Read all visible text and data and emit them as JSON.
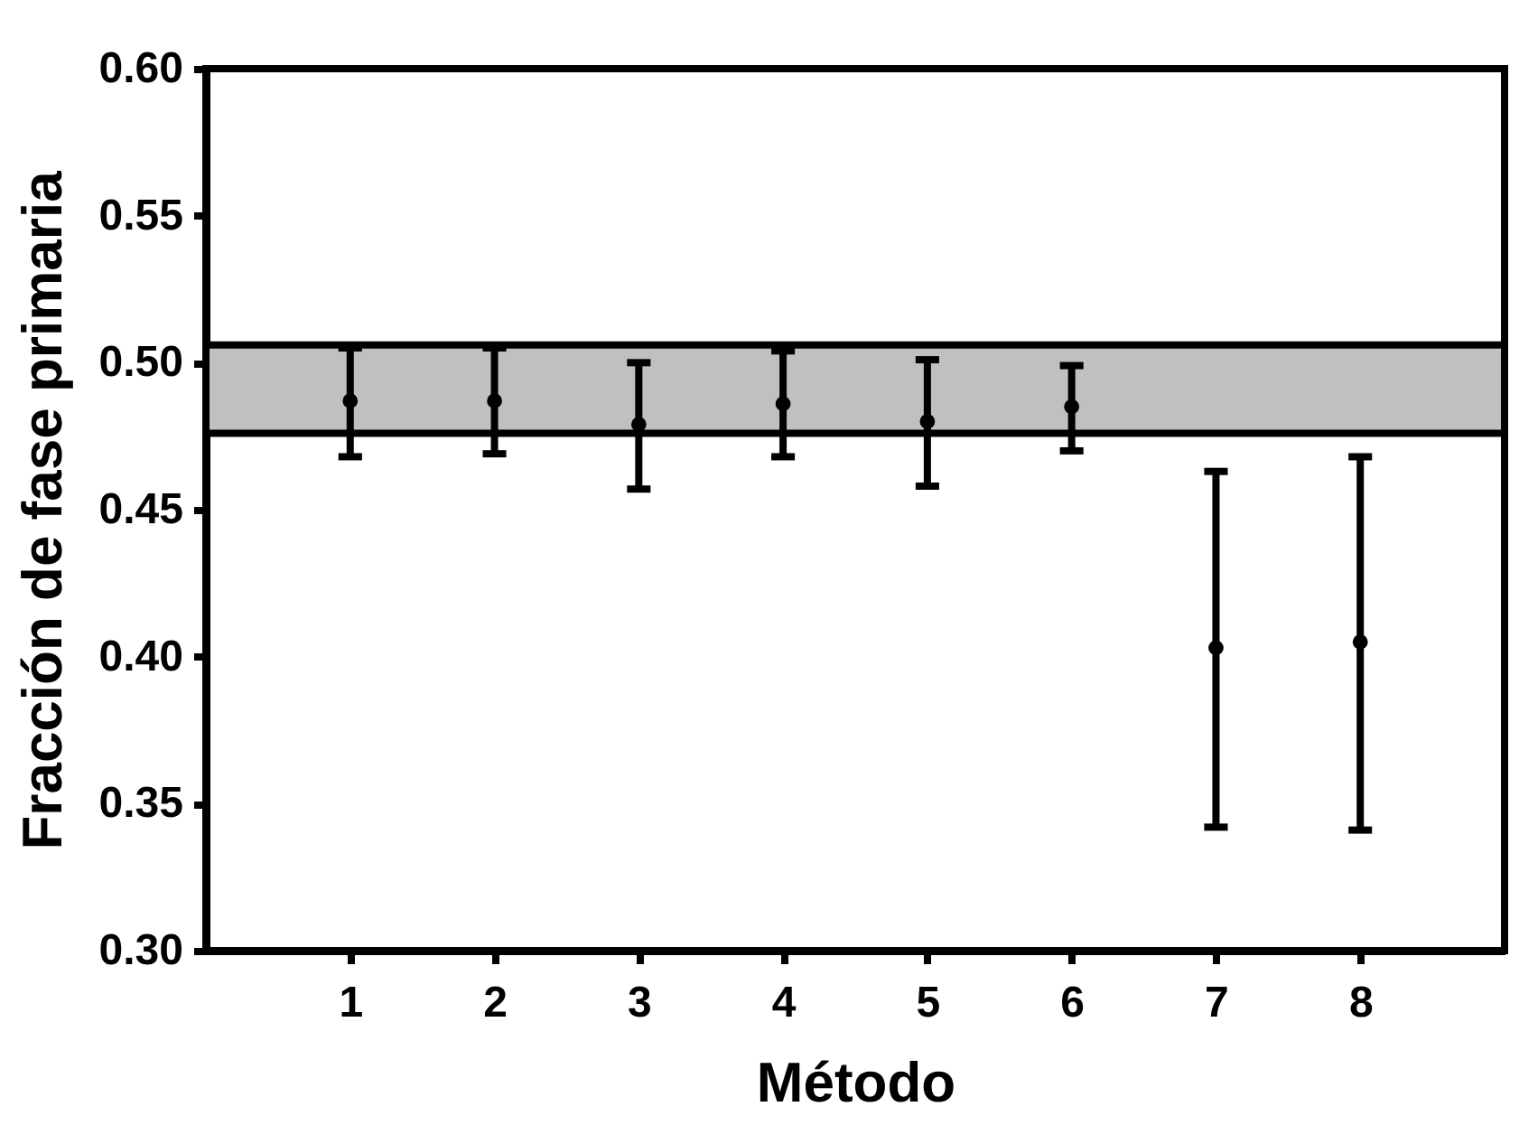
{
  "chart_data": {
    "type": "scatter",
    "xlabel": "Método",
    "ylabel": "Fracción de fase primaria",
    "x": [
      1,
      2,
      3,
      4,
      5,
      6,
      7,
      8
    ],
    "values": [
      0.487,
      0.487,
      0.479,
      0.486,
      0.48,
      0.485,
      0.403,
      0.405
    ],
    "errors": [
      [
        0.468,
        0.505
      ],
      [
        0.469,
        0.505
      ],
      [
        0.457,
        0.5
      ],
      [
        0.468,
        0.504
      ],
      [
        0.458,
        0.501
      ],
      [
        0.47,
        0.499
      ],
      [
        0.342,
        0.463
      ],
      [
        0.341,
        0.468
      ]
    ],
    "color": "#000000",
    "marker": "circle",
    "xlim": [
      0,
      9
    ],
    "xticks": [
      1,
      2,
      3,
      4,
      5,
      6,
      7,
      8
    ],
    "ylim": [
      0.3,
      0.6
    ],
    "yticks": [
      {
        "value": 0.3,
        "label": "0.30"
      },
      {
        "value": 0.35,
        "label": "0.35"
      },
      {
        "value": 0.4,
        "label": "0.40"
      },
      {
        "value": 0.45,
        "label": "0.45"
      },
      {
        "value": 0.5,
        "label": "0.50"
      },
      {
        "value": 0.55,
        "label": "0.55"
      },
      {
        "value": 0.6,
        "label": "0.60"
      }
    ],
    "bands": [
      {
        "axis": "y",
        "from": 0.476,
        "to": 0.506,
        "color": "#c0c0c0"
      }
    ],
    "grid": false
  }
}
